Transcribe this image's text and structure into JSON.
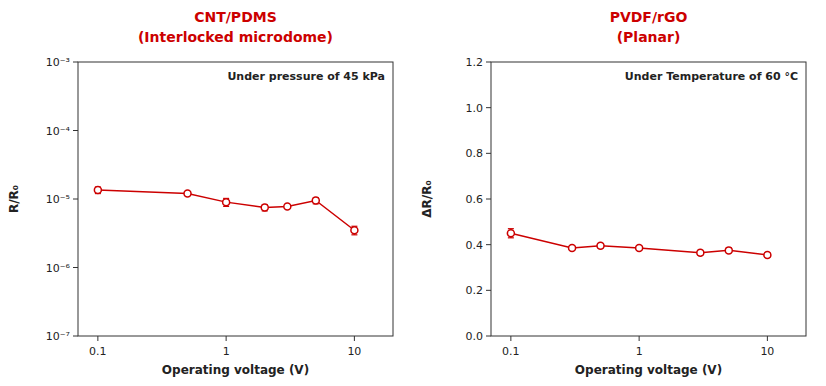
{
  "chart_data": [
    {
      "type": "line",
      "title": "CNT/PDMS",
      "subtitle": "(Interlocked microdome)",
      "annotation": "Under pressure of 45 kPa",
      "x_label": "Operating voltage (V)",
      "y_label": "R/R₀",
      "color": "#cc0000",
      "log": true,
      "grid": false,
      "x": [
        0.1,
        0.5,
        1.0,
        2.0,
        3.0,
        5.0,
        10.0
      ],
      "series": [
        {
          "color": "#cc0000",
          "marker": "circle",
          "line_style": "solid",
          "values": [
            1.35e-05,
            1.2e-05,
            9e-06,
            7.5e-06,
            7.8e-06,
            9.5e-06,
            3.5e-06
          ],
          "error": [
            1.5e-06,
            8e-07,
            1.2e-06,
            8e-07,
            5e-07,
            1e-06,
            5e-07
          ]
        }
      ],
      "xlim": [
        0.07,
        20
      ],
      "xticks": [
        0.1,
        1,
        10
      ],
      "ylim": [
        1e-07,
        0.001
      ],
      "yticks": [
        {
          "value": 1e-07,
          "label": "10⁻⁷"
        },
        {
          "value": 1e-06,
          "label": "10⁻⁶"
        },
        {
          "value": 1e-05,
          "label": "10⁻⁵"
        },
        {
          "value": 0.0001,
          "label": "10⁻⁴"
        },
        {
          "value": 0.001,
          "label": "10⁻³"
        }
      ]
    },
    {
      "type": "line",
      "title": "PVDF/rGO",
      "subtitle": "(Planar)",
      "annotation": "Under Temperature of 60 °C",
      "x_label": "Operating voltage (V)",
      "y_label": "ΔR/R₀",
      "color": "#cc0000",
      "log": "x",
      "grid": false,
      "x": [
        0.1,
        0.3,
        0.5,
        1.0,
        3.0,
        5.0,
        10.0
      ],
      "series": [
        {
          "color": "#cc0000",
          "marker": "circle",
          "line_style": "solid",
          "values": [
            0.45,
            0.385,
            0.395,
            0.385,
            0.365,
            0.375,
            0.355
          ],
          "error": [
            0.02,
            0.01,
            0.01,
            0.01,
            0.01,
            0.01,
            0.01
          ]
        }
      ],
      "xlim": [
        0.07,
        20
      ],
      "xticks": [
        0.1,
        1,
        10
      ],
      "ylim": [
        0.0,
        1.2
      ],
      "yticks": [
        {
          "value": 0.0,
          "label": "0.0"
        },
        0.2,
        0.4,
        0.6,
        0.8,
        {
          "value": 1.0,
          "label": "1.0"
        },
        1.2
      ]
    }
  ]
}
